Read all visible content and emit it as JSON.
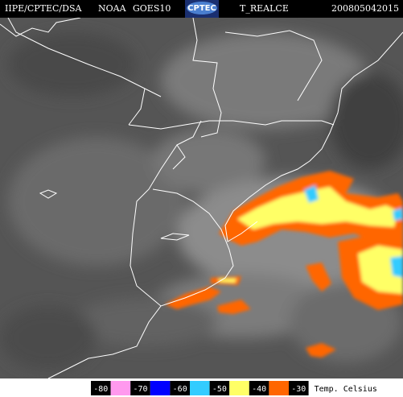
{
  "header": {
    "source": "IIPE/CPTEC/DSA",
    "satellite": "NOAA",
    "instrument": "GOES10",
    "logo": "CPTEC",
    "product": "T_REALCE",
    "timestamp": "200805042015"
  },
  "legend": {
    "labels": [
      "-80",
      "-70",
      "-60",
      "-50",
      "-40",
      "-30"
    ],
    "colors": [
      "#ff99ee",
      "#0000ff",
      "#33ccff",
      "#ffff66",
      "#ff6600"
    ],
    "unit": "Temp. Celsius"
  }
}
